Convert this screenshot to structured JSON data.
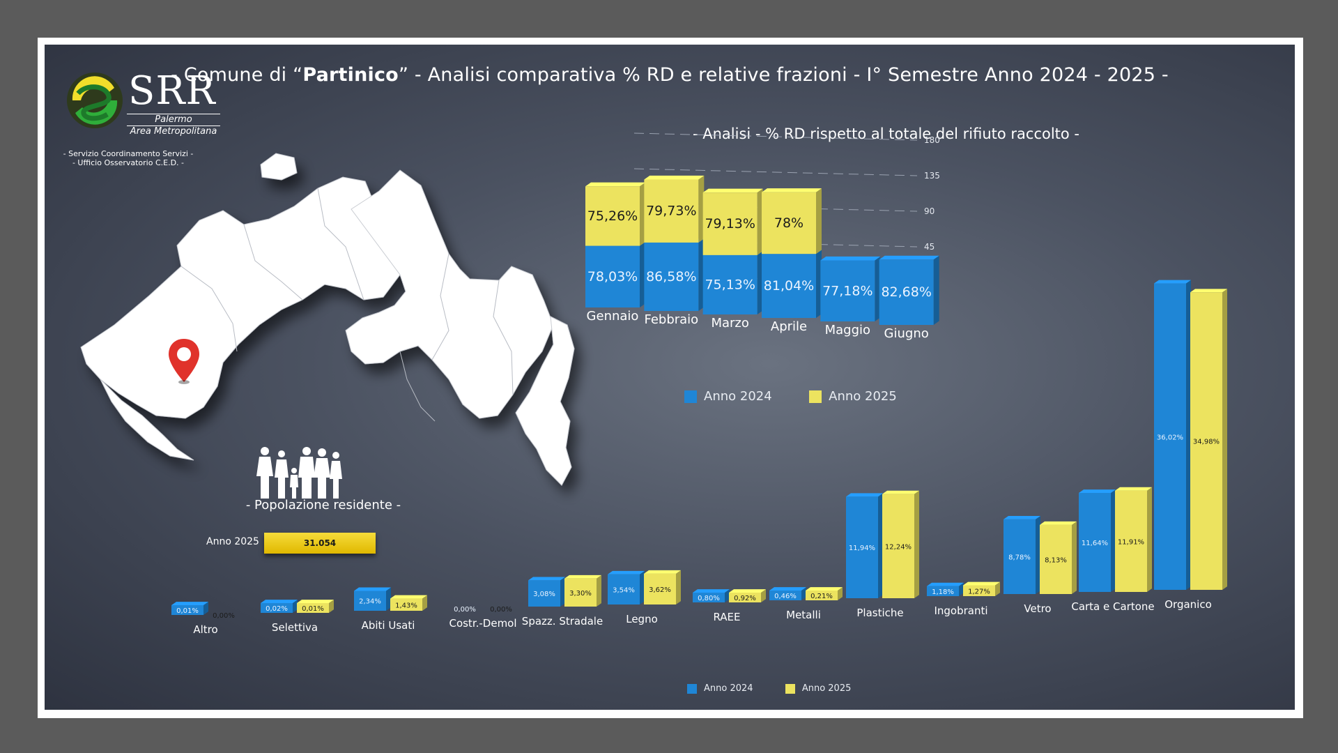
{
  "header": {
    "title_prefix": "- Comune di “",
    "title_bold": "Partinico",
    "title_suffix": "” - Analisi comparativa % RD e relative frazioni - I° Semestre Anno 2024 - 2025 -"
  },
  "logo": {
    "name": "SRR",
    "line1": "Palermo",
    "line2": "Area Metropolitana",
    "sub1": "- Servizio Coordinamento Servizi -",
    "sub2": "- Ufficio Osservatorio C.E.D. -"
  },
  "population": {
    "label": "- Popolazione residente -",
    "year": "Anno 2025",
    "value": "31.054"
  },
  "colors": {
    "y2024": "#1f86d6",
    "y2025": "#ece35f"
  },
  "chart_data": [
    {
      "type": "bar",
      "title": "- Analisi - % RD rispetto al totale del rifiuto raccolto -",
      "stacked": true,
      "categories": [
        "Gennaio",
        "Febbraio",
        "Marzo",
        "Aprile",
        "Maggio",
        "Giugno"
      ],
      "series": [
        {
          "name": "Anno 2024",
          "values": [
            78.03,
            86.58,
            75.13,
            81.04,
            77.18,
            82.68
          ],
          "labels": [
            "78,03%",
            "86,58%",
            "75,13%",
            "81,04%",
            "77,18%",
            "82,68%"
          ]
        },
        {
          "name": "Anno 2025",
          "values": [
            75.26,
            79.73,
            79.13,
            78,
            null,
            null
          ],
          "labels": [
            "75,26%",
            "79,73%",
            "79,13%",
            "78%",
            "",
            ""
          ]
        }
      ],
      "yticks": [
        "0",
        "45",
        "90",
        "135",
        "180"
      ],
      "ylim": [
        0,
        180
      ],
      "grid": true,
      "legend": "bottom"
    },
    {
      "type": "bar",
      "categories": [
        "Altro",
        "Selettiva",
        "Abiti Usati",
        "Costr.-Demol",
        "Spazz. Stradale",
        "Legno",
        "RAEE",
        "Metalli",
        "Plastiche",
        "Ingobranti",
        "Vetro",
        "Carta e Cartone",
        "Organico"
      ],
      "series": [
        {
          "name": "Anno 2024",
          "values": [
            0.01,
            0.02,
            2.34,
            0.0,
            3.08,
            3.54,
            0.8,
            0.46,
            11.94,
            1.18,
            8.78,
            11.64,
            36.02
          ],
          "labels": [
            "0,01%",
            "0,02%",
            "2,34%",
            "0,00%",
            "3,08%",
            "3,54%",
            "0,80%",
            "0,46%",
            "11,94%",
            "1,18%",
            "8,78%",
            "11,64%",
            "36,02%"
          ]
        },
        {
          "name": "Anno 2025",
          "values": [
            0.0,
            0.01,
            1.43,
            0.0,
            3.3,
            3.62,
            0.92,
            0.21,
            12.24,
            1.27,
            8.13,
            11.91,
            34.98
          ],
          "labels": [
            "0,00%",
            "0,01%",
            "1,43%",
            "0,00%",
            "3,30%",
            "3,62%",
            "0,92%",
            "0,21%",
            "12,24%",
            "1,27%",
            "8,13%",
            "11,91%",
            "34,98%"
          ]
        }
      ],
      "legend": "bottom"
    }
  ]
}
